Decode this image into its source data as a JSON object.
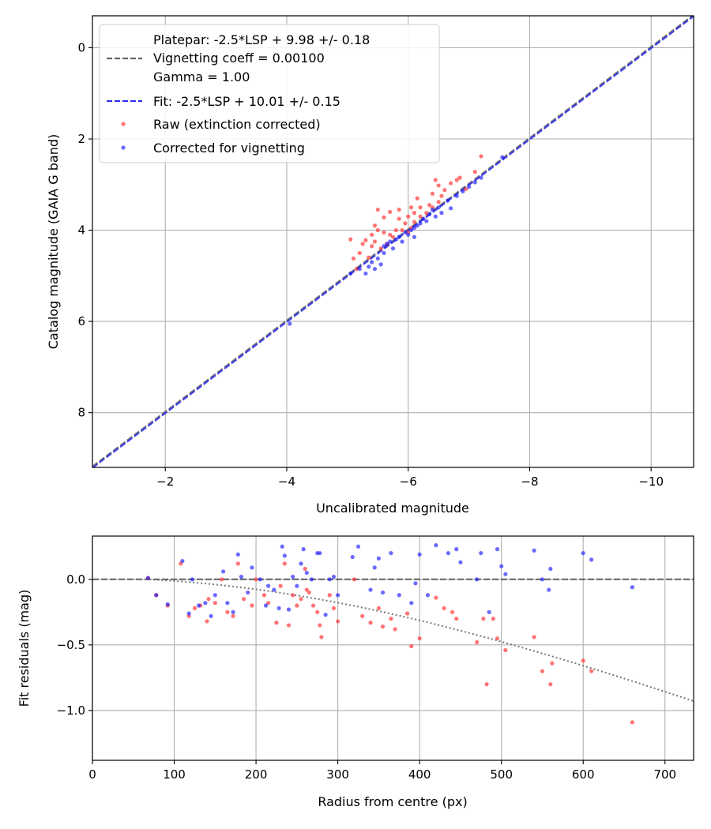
{
  "chart_data": [
    {
      "type": "scatter",
      "xlabel": "Uncalibrated magnitude",
      "ylabel": "Catalog magnitude (GAIA G band)",
      "xlim": [
        -0.8,
        -10.7
      ],
      "ylim": [
        9.2,
        -0.7
      ],
      "xticks": [
        -2,
        -4,
        -6,
        -8,
        -10
      ],
      "xtick_labels": [
        "−2",
        "−4",
        "−6",
        "−8",
        "−10"
      ],
      "yticks": [
        0,
        2,
        4,
        6,
        8
      ],
      "ytick_labels": [
        "0",
        "2",
        "4",
        "6",
        "8"
      ],
      "grid": true,
      "legend_location": "upper-left",
      "legend": {
        "platepar_line1": "Platepar: -2.5*LSP + 9.98 +/- 0.18",
        "platepar_line2": "Vignetting coeff = 0.00100",
        "platepar_line3": "Gamma = 1.00",
        "fit": "Fit: -2.5*LSP + 10.01 +/- 0.15",
        "raw": "Raw (extinction corrected)",
        "corrected": "Corrected for vignetting"
      },
      "lines": [
        {
          "name": "platepar",
          "style": "dashed",
          "color": "#666666",
          "intercept": 9.98,
          "slope": 1.0
        },
        {
          "name": "fit",
          "style": "dashed",
          "color": "#2f2fe8",
          "intercept": 10.01,
          "slope": 1.0
        }
      ],
      "series": [
        {
          "name": "Raw (extinction corrected)",
          "color": "#ff2a2a",
          "points": [
            [
              -5.05,
              4.2
            ],
            [
              -5.1,
              4.62
            ],
            [
              -5.15,
              4.85
            ],
            [
              -5.2,
              4.5
            ],
            [
              -5.25,
              4.3
            ],
            [
              -5.3,
              4.22
            ],
            [
              -5.35,
              4.6
            ],
            [
              -5.4,
              4.35
            ],
            [
              -5.4,
              4.1
            ],
            [
              -5.45,
              4.25
            ],
            [
              -5.45,
              3.9
            ],
            [
              -5.5,
              4.0
            ],
            [
              -5.5,
              3.55
            ],
            [
              -5.55,
              4.4
            ],
            [
              -5.6,
              4.05
            ],
            [
              -5.6,
              3.72
            ],
            [
              -5.65,
              4.3
            ],
            [
              -5.7,
              3.6
            ],
            [
              -5.7,
              4.1
            ],
            [
              -5.75,
              4.15
            ],
            [
              -5.8,
              4.0
            ],
            [
              -5.85,
              3.75
            ],
            [
              -5.85,
              3.55
            ],
            [
              -5.9,
              4.0
            ],
            [
              -5.95,
              3.85
            ],
            [
              -6.0,
              3.7
            ],
            [
              -6.0,
              4.05
            ],
            [
              -6.05,
              3.5
            ],
            [
              -6.05,
              3.95
            ],
            [
              -6.1,
              3.82
            ],
            [
              -6.1,
              3.62
            ],
            [
              -6.15,
              3.3
            ],
            [
              -6.2,
              3.7
            ],
            [
              -6.2,
              3.5
            ],
            [
              -6.3,
              3.62
            ],
            [
              -6.35,
              3.45
            ],
            [
              -6.4,
              3.2
            ],
            [
              -6.4,
              3.5
            ],
            [
              -6.45,
              2.9
            ],
            [
              -6.5,
              3.38
            ],
            [
              -6.5,
              3.02
            ],
            [
              -6.55,
              3.25
            ],
            [
              -6.6,
              3.12
            ],
            [
              -6.7,
              2.97
            ],
            [
              -6.8,
              2.9
            ],
            [
              -6.85,
              2.85
            ],
            [
              -6.95,
              3.1
            ],
            [
              -7.1,
              2.72
            ],
            [
              -7.2,
              2.38
            ]
          ]
        },
        {
          "name": "Corrected for vignetting",
          "color": "#1a1aff",
          "points": [
            [
              -4.05,
              6.05
            ],
            [
              -5.05,
              4.95
            ],
            [
              -5.2,
              4.85
            ],
            [
              -5.3,
              4.95
            ],
            [
              -5.35,
              4.8
            ],
            [
              -5.4,
              4.7
            ],
            [
              -5.45,
              4.85
            ],
            [
              -5.5,
              4.62
            ],
            [
              -5.55,
              4.75
            ],
            [
              -5.6,
              4.5
            ],
            [
              -5.6,
              4.35
            ],
            [
              -5.65,
              4.3
            ],
            [
              -5.7,
              4.25
            ],
            [
              -5.75,
              4.4
            ],
            [
              -5.8,
              4.2
            ],
            [
              -5.85,
              4.15
            ],
            [
              -5.9,
              4.25
            ],
            [
              -5.95,
              4.05
            ],
            [
              -6.0,
              4.1
            ],
            [
              -6.05,
              4.0
            ],
            [
              -6.1,
              3.95
            ],
            [
              -6.1,
              4.15
            ],
            [
              -6.15,
              3.9
            ],
            [
              -6.2,
              3.85
            ],
            [
              -6.25,
              3.75
            ],
            [
              -6.3,
              3.8
            ],
            [
              -6.35,
              3.65
            ],
            [
              -6.4,
              3.55
            ],
            [
              -6.45,
              3.7
            ],
            [
              -6.5,
              3.5
            ],
            [
              -6.55,
              3.62
            ],
            [
              -6.65,
              3.35
            ],
            [
              -6.7,
              3.52
            ],
            [
              -6.8,
              3.25
            ],
            [
              -6.9,
              3.15
            ],
            [
              -7.0,
              3.05
            ],
            [
              -7.1,
              2.95
            ],
            [
              -7.2,
              2.85
            ],
            [
              -7.55,
              2.4
            ]
          ]
        }
      ]
    },
    {
      "type": "scatter",
      "xlabel": "Radius from centre (px)",
      "ylabel": "Fit residuals (mag)",
      "xlim": [
        0,
        735
      ],
      "ylim": [
        -1.38,
        0.33
      ],
      "xticks": [
        0,
        100,
        200,
        300,
        400,
        500,
        600,
        700
      ],
      "xtick_labels": [
        "0",
        "100",
        "200",
        "300",
        "400",
        "500",
        "600",
        "700"
      ],
      "yticks": [
        0.0,
        -0.5,
        -1.0
      ],
      "ytick_labels": [
        "0.0",
        "−0.5",
        "−1.0"
      ],
      "grid": true,
      "lines": [
        {
          "name": "zero",
          "style": "dashed",
          "color": "#555555"
        },
        {
          "name": "vignetting-model",
          "style": "dotted",
          "color": "#777777",
          "coeff": 0.001,
          "r0": 65
        }
      ],
      "series": [
        {
          "name": "Raw (extinction corrected)",
          "color": "#ff2a2a",
          "points": [
            [
              68,
              0.01
            ],
            [
              78,
              -0.12
            ],
            [
              92,
              -0.2
            ],
            [
              108,
              0.12
            ],
            [
              118,
              -0.28
            ],
            [
              125,
              -0.22
            ],
            [
              132,
              -0.2
            ],
            [
              140,
              -0.32
            ],
            [
              142,
              -0.15
            ],
            [
              150,
              -0.18
            ],
            [
              158,
              0.0
            ],
            [
              165,
              -0.25
            ],
            [
              172,
              -0.28
            ],
            [
              178,
              0.12
            ],
            [
              185,
              -0.15
            ],
            [
              195,
              -0.2
            ],
            [
              200,
              0.0
            ],
            [
              210,
              -0.12
            ],
            [
              215,
              -0.18
            ],
            [
              225,
              -0.33
            ],
            [
              230,
              -0.05
            ],
            [
              235,
              0.12
            ],
            [
              240,
              -0.35
            ],
            [
              245,
              -0.12
            ],
            [
              250,
              -0.2
            ],
            [
              255,
              -0.15
            ],
            [
              260,
              0.08
            ],
            [
              262,
              -0.08
            ],
            [
              265,
              -0.1
            ],
            [
              270,
              -0.2
            ],
            [
              275,
              -0.25
            ],
            [
              278,
              -0.35
            ],
            [
              280,
              -0.44
            ],
            [
              290,
              -0.12
            ],
            [
              295,
              -0.22
            ],
            [
              300,
              -0.32
            ],
            [
              320,
              0.0
            ],
            [
              330,
              -0.28
            ],
            [
              340,
              -0.33
            ],
            [
              350,
              -0.22
            ],
            [
              355,
              -0.36
            ],
            [
              365,
              -0.3
            ],
            [
              370,
              -0.38
            ],
            [
              385,
              -0.26
            ],
            [
              390,
              -0.51
            ],
            [
              400,
              -0.45
            ],
            [
              420,
              -0.14
            ],
            [
              430,
              -0.22
            ],
            [
              440,
              -0.25
            ],
            [
              445,
              -0.3
            ],
            [
              470,
              -0.48
            ],
            [
              478,
              -0.3
            ],
            [
              482,
              -0.8
            ],
            [
              490,
              -0.3
            ],
            [
              495,
              -0.45
            ],
            [
              505,
              -0.54
            ],
            [
              540,
              -0.44
            ],
            [
              550,
              -0.7
            ],
            [
              560,
              -0.8
            ],
            [
              562,
              -0.64
            ],
            [
              600,
              -0.62
            ],
            [
              610,
              -0.7
            ],
            [
              660,
              -1.09
            ]
          ]
        },
        {
          "name": "Corrected for vignetting",
          "color": "#1a1aff",
          "points": [
            [
              68,
              0.01
            ],
            [
              78,
              -0.12
            ],
            [
              92,
              -0.19
            ],
            [
              110,
              0.14
            ],
            [
              118,
              -0.26
            ],
            [
              122,
              0.0
            ],
            [
              130,
              -0.2
            ],
            [
              138,
              -0.18
            ],
            [
              145,
              -0.28
            ],
            [
              150,
              -0.12
            ],
            [
              160,
              0.06
            ],
            [
              165,
              -0.18
            ],
            [
              172,
              -0.25
            ],
            [
              178,
              0.19
            ],
            [
              182,
              0.02
            ],
            [
              190,
              -0.1
            ],
            [
              195,
              0.09
            ],
            [
              205,
              0.0
            ],
            [
              212,
              -0.2
            ],
            [
              215,
              -0.05
            ],
            [
              222,
              -0.08
            ],
            [
              228,
              -0.22
            ],
            [
              232,
              0.25
            ],
            [
              235,
              0.18
            ],
            [
              240,
              -0.23
            ],
            [
              245,
              0.02
            ],
            [
              250,
              -0.05
            ],
            [
              255,
              0.12
            ],
            [
              258,
              0.23
            ],
            [
              262,
              0.05
            ],
            [
              268,
              0.0
            ],
            [
              275,
              0.2
            ],
            [
              278,
              0.2
            ],
            [
              285,
              -0.27
            ],
            [
              290,
              0.0
            ],
            [
              295,
              0.02
            ],
            [
              300,
              -0.12
            ],
            [
              318,
              0.17
            ],
            [
              325,
              0.25
            ],
            [
              340,
              -0.08
            ],
            [
              345,
              0.09
            ],
            [
              350,
              0.16
            ],
            [
              355,
              -0.1
            ],
            [
              365,
              0.2
            ],
            [
              375,
              -0.12
            ],
            [
              390,
              -0.18
            ],
            [
              395,
              -0.03
            ],
            [
              400,
              0.19
            ],
            [
              410,
              -0.12
            ],
            [
              420,
              0.26
            ],
            [
              435,
              0.2
            ],
            [
              445,
              0.23
            ],
            [
              450,
              0.13
            ],
            [
              470,
              0.0
            ],
            [
              475,
              0.2
            ],
            [
              485,
              -0.25
            ],
            [
              495,
              0.23
            ],
            [
              500,
              0.1
            ],
            [
              505,
              0.04
            ],
            [
              540,
              0.22
            ],
            [
              550,
              0.0
            ],
            [
              558,
              -0.08
            ],
            [
              560,
              0.08
            ],
            [
              600,
              0.2
            ],
            [
              610,
              0.15
            ],
            [
              660,
              -0.06
            ]
          ]
        }
      ]
    }
  ]
}
